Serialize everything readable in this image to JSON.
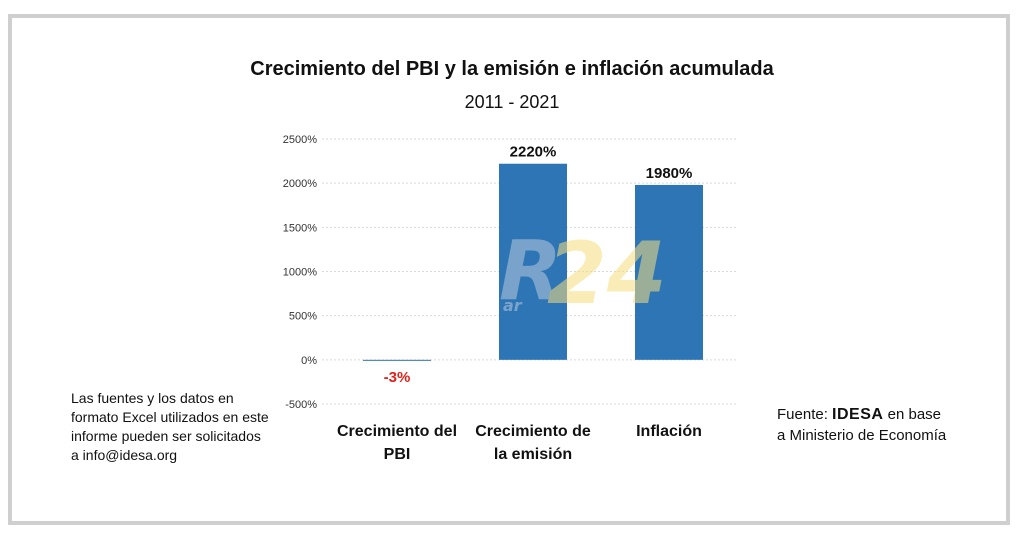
{
  "title": "Crecimiento del PBI y la emisión e inflación acumulada",
  "subtitle": "2011 - 2021",
  "left_note": "Las fuentes y los datos en formato Excel utilizados en este informe pueden ser solicitados a info@idesa.org",
  "source": {
    "prefix": "Fuente: ",
    "org": "IDESA",
    "suffix": " en base a Ministerio de Economía"
  },
  "watermark": {
    "left": "R",
    "right": "24",
    "small": "ar"
  },
  "colors": {
    "bar": "#2E75B6",
    "negative_label": "#E0211B",
    "watermark_yellow": "#F5DD7E",
    "watermark_blue": "#C9D6E6"
  },
  "chart_data": {
    "type": "bar",
    "title": "Crecimiento del PBI y la emisión e inflación acumulada",
    "subtitle": "2011 - 2021",
    "categories": [
      "Crecimiento del PBI",
      "Crecimiento de la emisión",
      "Inflación"
    ],
    "category_lines": [
      [
        "Crecimiento del",
        "PBI"
      ],
      [
        "Crecimiento de",
        "la emisión"
      ],
      [
        "Inflación"
      ]
    ],
    "values": [
      -3,
      2220,
      1980
    ],
    "data_labels": [
      "-3%",
      "2220%",
      "1980%"
    ],
    "ylim": [
      -500,
      2500
    ],
    "yticks": [
      -500,
      0,
      500,
      1000,
      1500,
      2000,
      2500
    ],
    "ytick_labels": [
      "-500%",
      "0%",
      "500%",
      "1000%",
      "1500%",
      "2000%",
      "2500%"
    ],
    "grid": true,
    "legend": false
  }
}
